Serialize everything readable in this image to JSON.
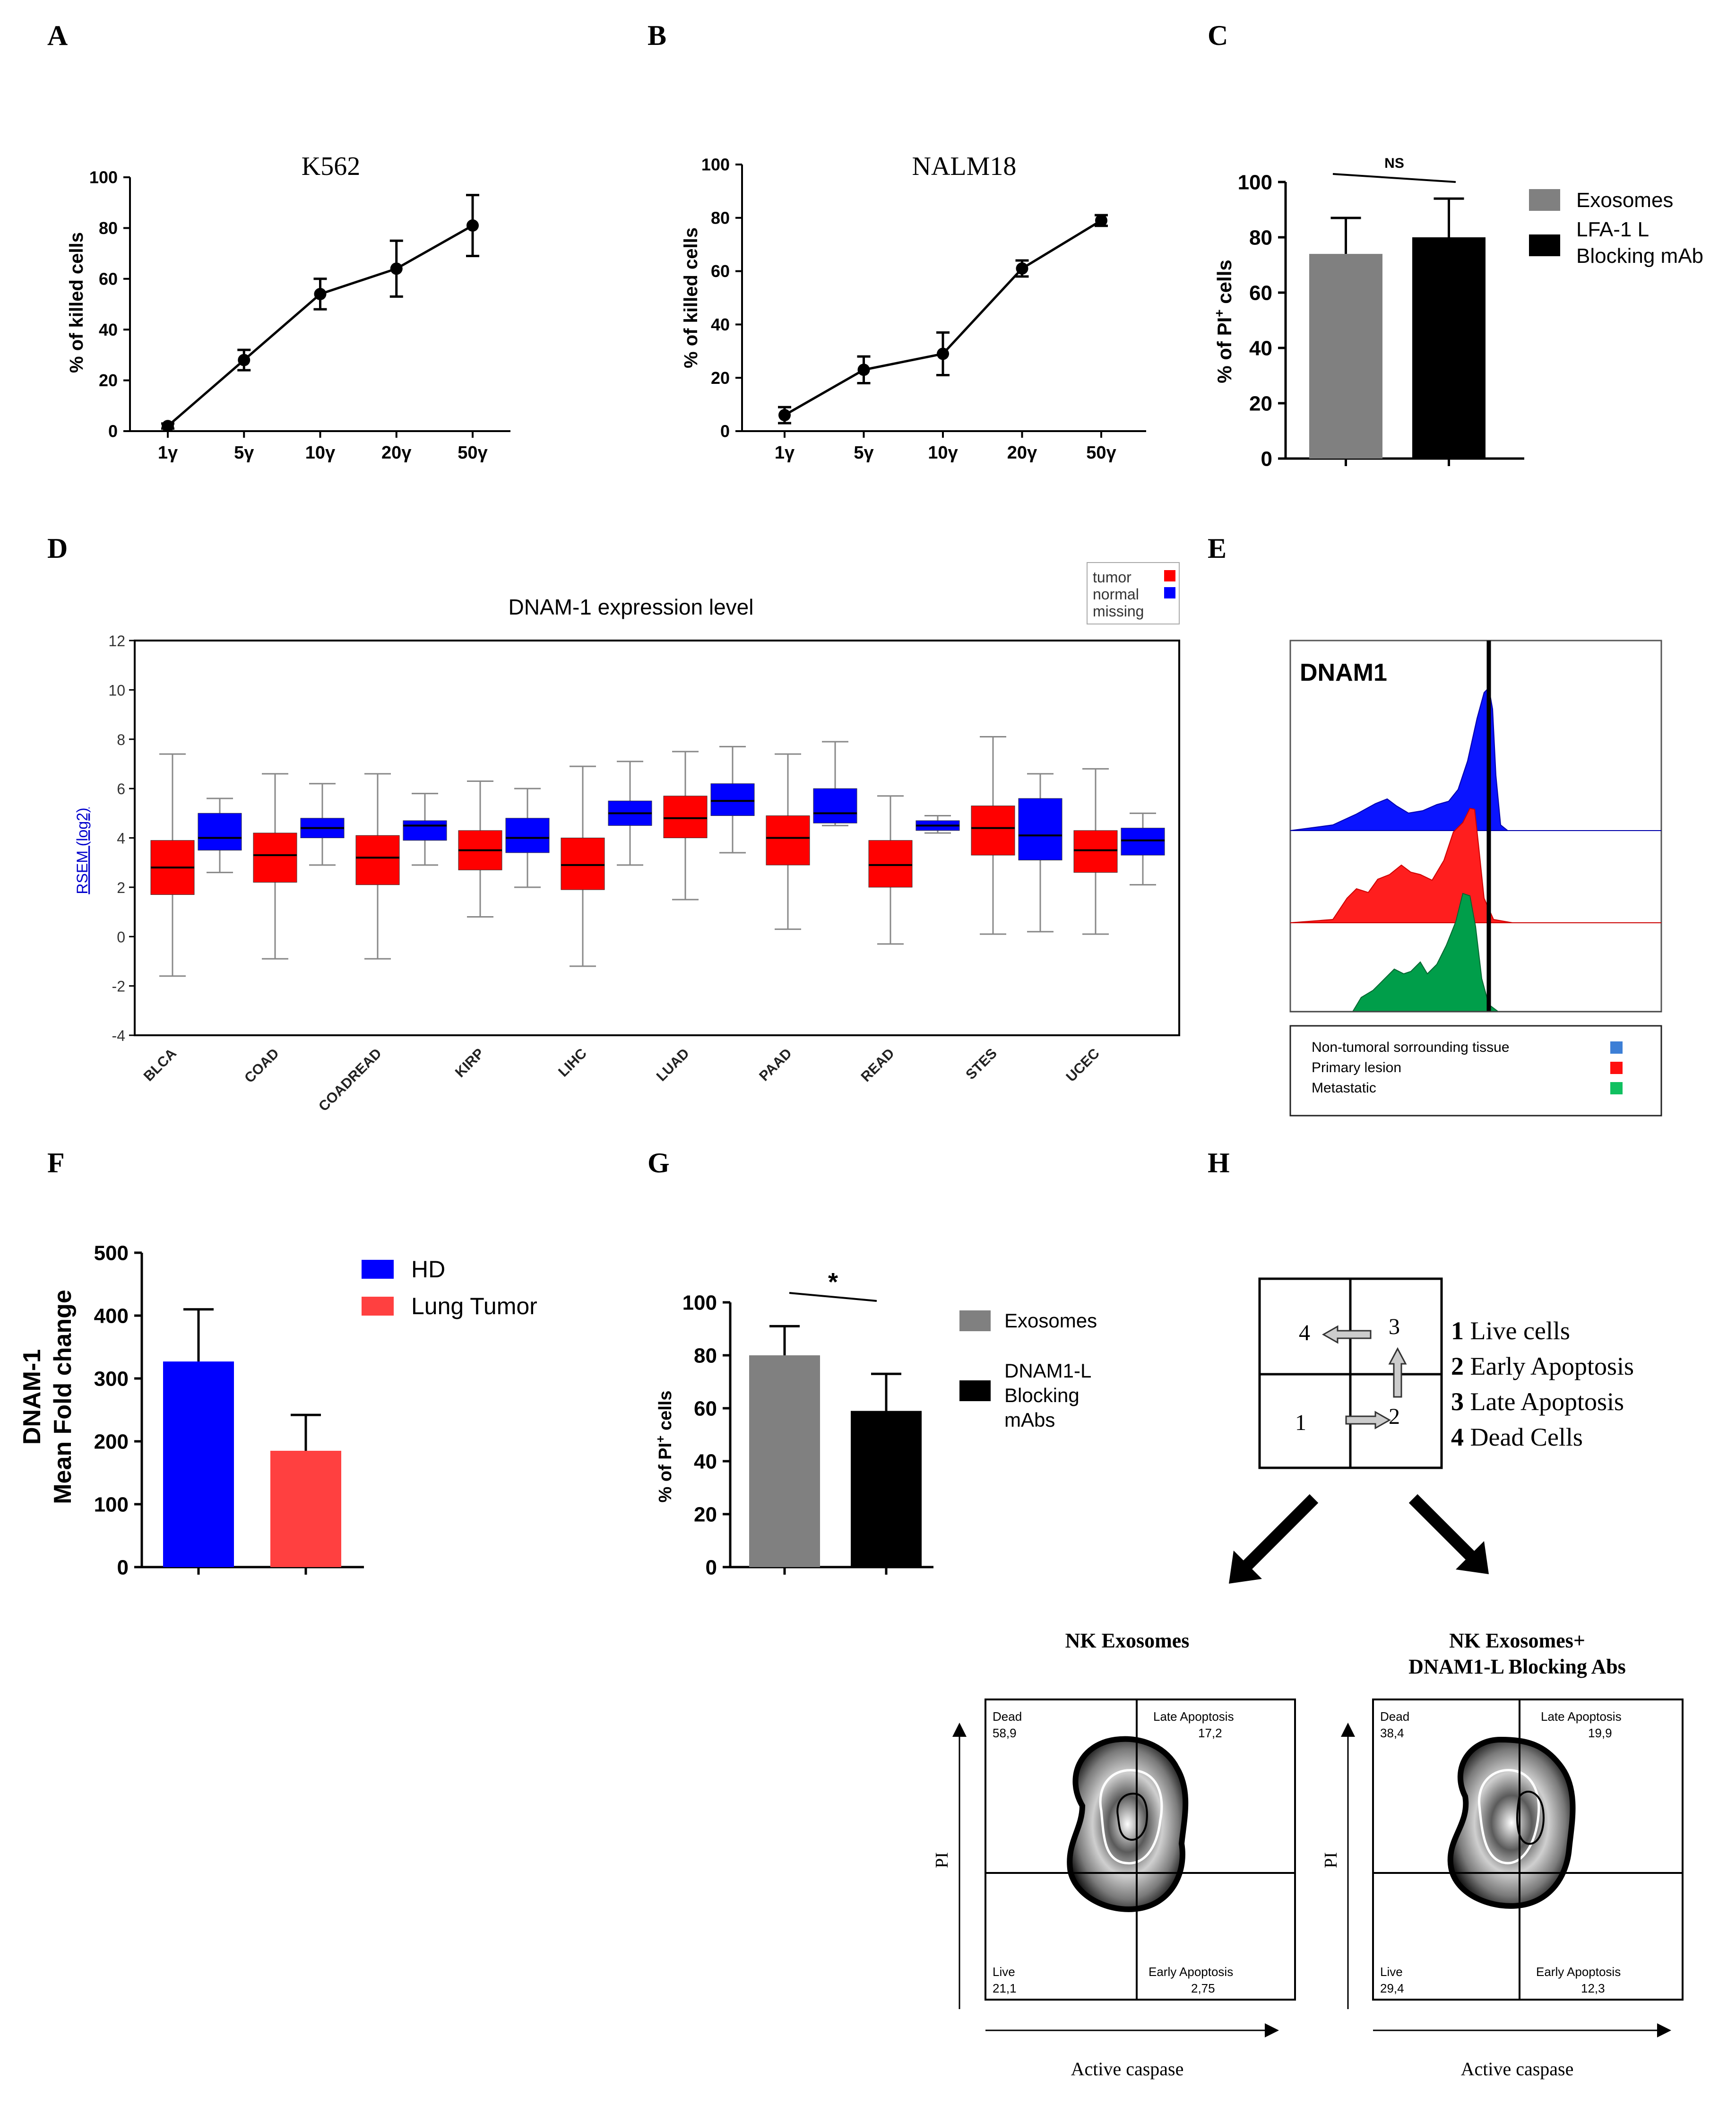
{
  "panel_letters": [
    "A",
    "B",
    "C",
    "D",
    "E",
    "F",
    "G",
    "H"
  ],
  "chart_data": [
    {
      "id": "A",
      "type": "line",
      "title": "K562",
      "xlabel": "",
      "ylabel": "% of killed cells",
      "categories": [
        "1γ",
        "5γ",
        "10γ",
        "20γ",
        "50γ"
      ],
      "values": [
        2,
        28,
        54,
        64,
        81
      ],
      "errors": [
        1,
        4,
        6,
        11,
        12
      ],
      "ylim": [
        0,
        100
      ],
      "yticks": [
        0,
        20,
        40,
        60,
        80,
        100
      ]
    },
    {
      "id": "B",
      "type": "line",
      "title": "NALM18",
      "xlabel": "",
      "ylabel": "% of killed cells",
      "categories": [
        "1γ",
        "5γ",
        "10γ",
        "20γ",
        "50γ"
      ],
      "values": [
        6,
        23,
        29,
        61,
        79
      ],
      "errors": [
        3,
        5,
        8,
        3,
        2
      ],
      "ylim": [
        0,
        100
      ],
      "yticks": [
        0,
        20,
        40,
        60,
        80,
        100
      ]
    },
    {
      "id": "C",
      "type": "bar",
      "ylabel_main": "% of PI",
      "ylabel_sup": "+",
      "ylabel_end": " cells",
      "categories": [
        "Exosomes",
        "LFA-1 L Blocking mAb"
      ],
      "values": [
        74,
        80
      ],
      "errors": [
        13,
        14
      ],
      "colors": [
        "#808080",
        "#000000"
      ],
      "legend": [
        [
          "Exosomes"
        ],
        [
          "LFA-1 L",
          "Blocking mAb"
        ]
      ],
      "significance": "NS",
      "ylim": [
        0,
        100
      ],
      "yticks": [
        0,
        20,
        40,
        60,
        80,
        100
      ]
    },
    {
      "id": "D",
      "type": "box",
      "title": "DNAM-1 expression level",
      "ylabel": "RSEM (log2)",
      "legend": [
        "tumor",
        "normal",
        "missing"
      ],
      "colors": {
        "tumor": "#ff0000",
        "normal": "#0000ff"
      },
      "ylim": [
        -4,
        12
      ],
      "yticks": [
        -4,
        -2,
        0,
        2,
        4,
        6,
        8,
        10,
        12
      ],
      "categories": [
        "BLCA",
        "COAD",
        "COADREAD",
        "KIRP",
        "LIHC",
        "LUAD",
        "PAAD",
        "READ",
        "STES",
        "UCEC"
      ],
      "tumor": [
        {
          "min": -1.6,
          "q1": 1.7,
          "median": 2.8,
          "q3": 3.9,
          "max": 7.4
        },
        {
          "min": -0.9,
          "q1": 2.2,
          "median": 3.3,
          "q3": 4.2,
          "max": 6.6
        },
        {
          "min": -0.9,
          "q1": 2.1,
          "median": 3.2,
          "q3": 4.1,
          "max": 6.6
        },
        {
          "min": 0.8,
          "q1": 2.7,
          "median": 3.5,
          "q3": 4.3,
          "max": 6.3
        },
        {
          "min": -1.2,
          "q1": 1.9,
          "median": 2.9,
          "q3": 4.0,
          "max": 6.9
        },
        {
          "min": 1.5,
          "q1": 4.0,
          "median": 4.8,
          "q3": 5.7,
          "max": 7.5
        },
        {
          "min": 0.3,
          "q1": 2.9,
          "median": 4.0,
          "q3": 4.9,
          "max": 7.4
        },
        {
          "min": -0.3,
          "q1": 2.0,
          "median": 2.9,
          "q3": 3.9,
          "max": 5.7
        },
        {
          "min": 0.1,
          "q1": 3.3,
          "median": 4.4,
          "q3": 5.3,
          "max": 8.1
        },
        {
          "min": 0.1,
          "q1": 2.6,
          "median": 3.5,
          "q3": 4.3,
          "max": 6.8
        }
      ],
      "normal": [
        {
          "min": 2.6,
          "q1": 3.5,
          "median": 4.0,
          "q3": 5.0,
          "max": 5.6
        },
        {
          "min": 2.9,
          "q1": 4.0,
          "median": 4.4,
          "q3": 4.8,
          "max": 6.2
        },
        {
          "min": 2.9,
          "q1": 3.9,
          "median": 4.5,
          "q3": 4.7,
          "max": 5.8
        },
        {
          "min": 2.0,
          "q1": 3.4,
          "median": 4.0,
          "q3": 4.8,
          "max": 6.0
        },
        {
          "min": 2.9,
          "q1": 4.5,
          "median": 5.0,
          "q3": 5.5,
          "max": 7.1
        },
        {
          "min": 3.4,
          "q1": 4.9,
          "median": 5.5,
          "q3": 6.2,
          "max": 7.7
        },
        {
          "min": 4.5,
          "q1": 4.6,
          "median": 5.0,
          "q3": 6.0,
          "max": 7.9
        },
        {
          "min": 4.2,
          "q1": 4.3,
          "median": 4.5,
          "q3": 4.7,
          "max": 4.9
        },
        {
          "min": 0.2,
          "q1": 3.1,
          "median": 4.1,
          "q3": 5.6,
          "max": 6.6
        },
        {
          "min": 2.1,
          "q1": 3.3,
          "median": 3.9,
          "q3": 4.4,
          "max": 5.0
        }
      ]
    },
    {
      "id": "E",
      "type": "histogram-overlay",
      "title": "DNAM1",
      "series": [
        {
          "name": "Non-tumoral sorrounding tissue",
          "color": "#0000ff"
        },
        {
          "name": "Primary lesion",
          "color": "#ff0000"
        },
        {
          "name": "Metastatic",
          "color": "#00a050"
        }
      ],
      "legend_colors": [
        "#3d7fd6",
        "#ff1010",
        "#10c060"
      ]
    },
    {
      "id": "F",
      "type": "bar",
      "ylabel": [
        "DNAM-1",
        "Mean  Fold change"
      ],
      "categories": [
        "HD",
        "Lung Tumor"
      ],
      "values": [
        327,
        185
      ],
      "errors": [
        83,
        57
      ],
      "colors": [
        "#0000ff",
        "#ff4040"
      ],
      "ylim": [
        0,
        500
      ],
      "yticks": [
        0,
        100,
        200,
        300,
        400,
        500
      ]
    },
    {
      "id": "G",
      "type": "bar",
      "ylabel_main": "% of PI",
      "ylabel_sup": "+",
      "ylabel_end": " cells",
      "categories": [
        "Exosomes",
        "DNAM1-L Blocking mAbs"
      ],
      "values": [
        80,
        59
      ],
      "errors": [
        11,
        14
      ],
      "colors": [
        "#808080",
        "#000000"
      ],
      "legend": [
        [
          "Exosomes"
        ],
        [
          "DNAM1-L",
          "Blocking",
          "mAbs"
        ]
      ],
      "significance": "*",
      "ylim": [
        0,
        100
      ],
      "yticks": [
        0,
        20,
        40,
        60,
        80,
        100
      ]
    },
    {
      "id": "H",
      "type": "quadrant-schematic",
      "quadrant_numbers": [
        "4",
        "3",
        "1",
        "2"
      ],
      "legend": [
        {
          "num": "1",
          "text": " Live cells"
        },
        {
          "num": "2",
          "text": " Early Apoptosis"
        },
        {
          "num": "3",
          "text": " Late Apoptosis"
        },
        {
          "num": "4",
          "text": " Dead Cells"
        }
      ],
      "plots": [
        {
          "title": [
            "NK Exosomes"
          ],
          "dead_label": "Dead",
          "dead": "58,9",
          "late_label": "Late Apoptosis",
          "late": "17,2",
          "live_label": "Live",
          "live": "21,1",
          "early_label": "Early Apoptosis",
          "early": "2,75",
          "xlabel": "Active caspase",
          "ylabel": "PI"
        },
        {
          "title": [
            "NK Exosomes+",
            "DNAM1-L Blocking Abs"
          ],
          "dead_label": "Dead",
          "dead": "38,4",
          "late_label": "Late Apoptosis",
          "late": "19,9",
          "live_label": "Live",
          "live": "29,4",
          "early_label": "Early Apoptosis",
          "early": "12,3",
          "xlabel": "Active caspase",
          "ylabel": "PI"
        }
      ]
    }
  ]
}
